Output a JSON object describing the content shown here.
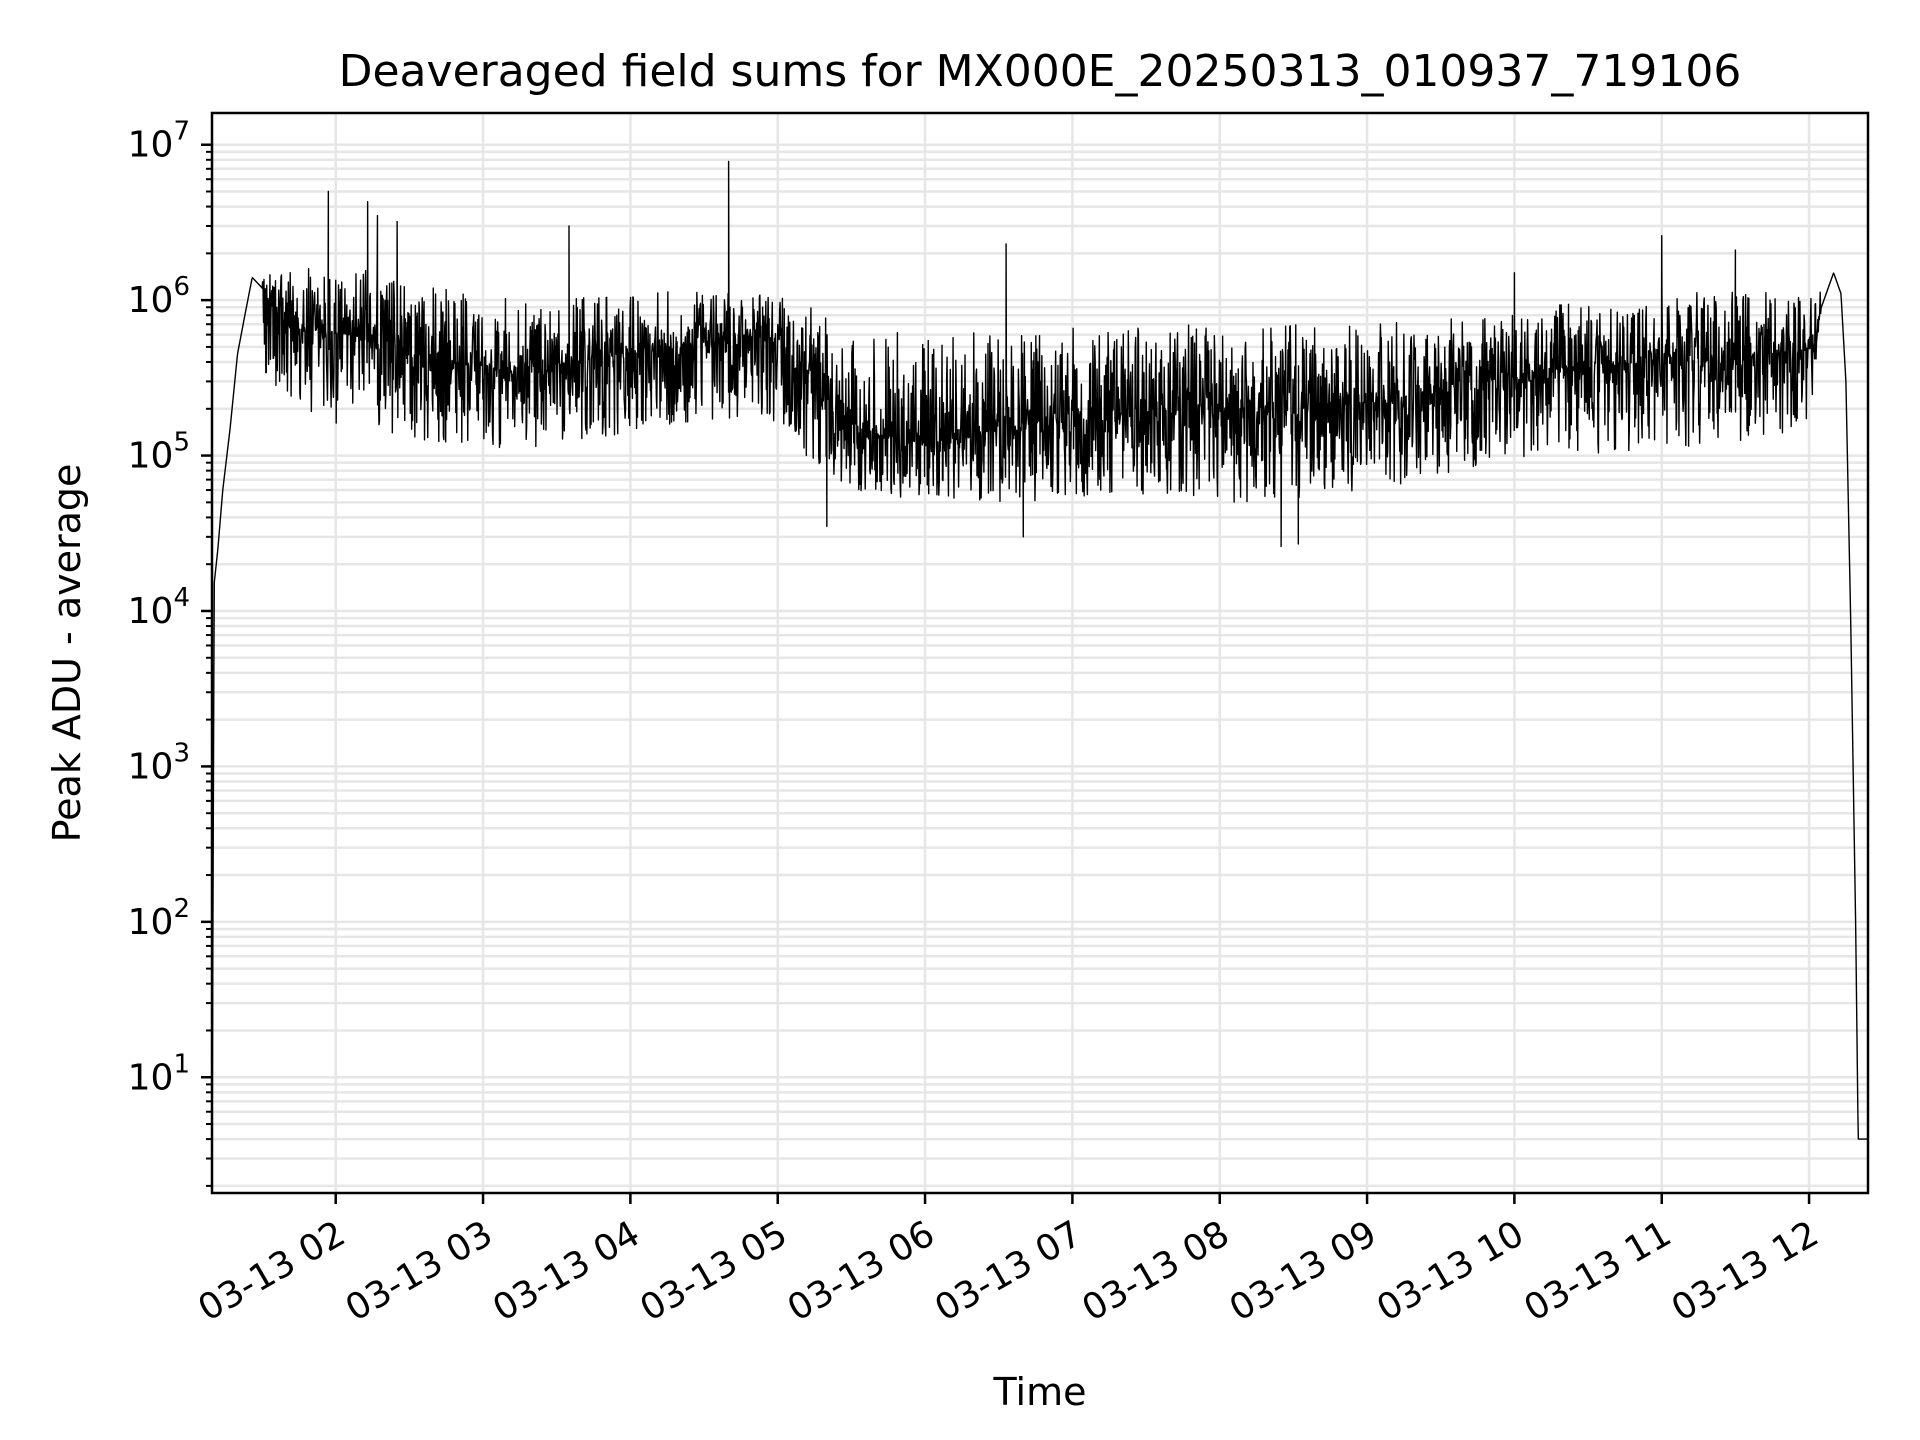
{
  "chart_data": {
    "type": "line",
    "title": "Deaveraged field sums for MX000E_20250313_010937_719106",
    "xlabel": "Time",
    "ylabel": "Peak ADU - average",
    "yscale": "log",
    "ylim": [
      1.8,
      16000000
    ],
    "xlim": [
      "2025-03-13 01:09:37",
      "2025-03-13 12:24:00"
    ],
    "grid": true,
    "line_color": "#000000",
    "grid_color": "#e6e6e6",
    "x_ticks": [
      {
        "label": "03-13 02",
        "time": "2025-03-13 02:00"
      },
      {
        "label": "03-13 03",
        "time": "2025-03-13 03:00"
      },
      {
        "label": "03-13 04",
        "time": "2025-03-13 04:00"
      },
      {
        "label": "03-13 05",
        "time": "2025-03-13 05:00"
      },
      {
        "label": "03-13 06",
        "time": "2025-03-13 06:00"
      },
      {
        "label": "03-13 07",
        "time": "2025-03-13 07:00"
      },
      {
        "label": "03-13 08",
        "time": "2025-03-13 08:00"
      },
      {
        "label": "03-13 09",
        "time": "2025-03-13 09:00"
      },
      {
        "label": "03-13 10",
        "time": "2025-03-13 10:00"
      },
      {
        "label": "03-13 11",
        "time": "2025-03-13 11:00"
      },
      {
        "label": "03-13 12",
        "time": "2025-03-13 12:00"
      }
    ],
    "y_ticks": [
      {
        "base": "10",
        "exp": "1",
        "value": 10
      },
      {
        "base": "10",
        "exp": "2",
        "value": 100
      },
      {
        "base": "10",
        "exp": "3",
        "value": 1000
      },
      {
        "base": "10",
        "exp": "4",
        "value": 10000
      },
      {
        "base": "10",
        "exp": "5",
        "value": 100000
      },
      {
        "base": "10",
        "exp": "6",
        "value": 1000000
      },
      {
        "base": "10",
        "exp": "7",
        "value": 10000000
      }
    ],
    "series": [
      {
        "x": [
          "2025-03-13 01:09:37",
          "2025-03-13 01:10:30",
          "2025-03-13 01:12:00",
          "2025-03-13 01:14:00",
          "2025-03-13 01:17:00",
          "2025-03-13 01:20:00",
          "2025-03-13 01:23:00",
          "2025-03-13 01:26:00",
          "2025-03-13 01:30:00",
          "2025-03-13 01:35:00",
          "2025-03-13 01:40:00",
          "2025-03-13 01:45:00",
          "2025-03-13 01:50:00",
          "2025-03-13 01:55:00",
          "2025-03-13 02:00:00",
          "2025-03-13 02:10:00",
          "2025-03-13 02:20:00",
          "2025-03-13 02:30:00",
          "2025-03-13 02:45:00",
          "2025-03-13 03:00:00",
          "2025-03-13 03:15:00",
          "2025-03-13 03:30:00",
          "2025-03-13 03:45:00",
          "2025-03-13 04:00:00",
          "2025-03-13 04:15:00",
          "2025-03-13 04:30:00",
          "2025-03-13 04:40:00",
          "2025-03-13 04:45:00",
          "2025-03-13 05:00:00",
          "2025-03-13 05:15:00",
          "2025-03-13 05:30:00",
          "2025-03-13 05:45:00",
          "2025-03-13 06:00:00",
          "2025-03-13 06:15:00",
          "2025-03-13 06:30:00",
          "2025-03-13 06:45:00",
          "2025-03-13 07:00:00",
          "2025-03-13 07:30:00",
          "2025-03-13 08:00:00",
          "2025-03-13 08:30:00",
          "2025-03-13 09:00:00",
          "2025-03-13 09:30:00",
          "2025-03-13 10:00:00",
          "2025-03-13 10:30:00",
          "2025-03-13 11:00:00",
          "2025-03-13 11:30:00",
          "2025-03-13 12:00:00",
          "2025-03-13 12:05:00",
          "2025-03-13 12:10:00",
          "2025-03-13 12:13:00",
          "2025-03-13 12:15:00",
          "2025-03-13 12:17:00",
          "2025-03-13 12:19:00",
          "2025-03-13 12:20:00",
          "2025-03-13 12:24:00"
        ],
        "median": [
          2,
          15000,
          25000,
          60000,
          150000,
          450000,
          800000,
          1400000,
          1200000,
          850000,
          700000,
          650000,
          650000,
          620000,
          620000,
          580000,
          500000,
          450000,
          400000,
          380000,
          340000,
          350000,
          420000,
          450000,
          500000,
          520000,
          550000,
          600000,
          560000,
          300000,
          160000,
          130000,
          120000,
          130000,
          150000,
          160000,
          170000,
          190000,
          200000,
          200000,
          220000,
          260000,
          330000,
          380000,
          400000,
          420000,
          480000,
          900000,
          1500000,
          1100000,
          300000,
          8000,
          90,
          4,
          4
        ],
        "low": [
          2,
          15000,
          25000,
          60000,
          150000,
          450000,
          800000,
          1400000,
          350000,
          250000,
          220000,
          200000,
          180000,
          170000,
          160000,
          150000,
          140000,
          130000,
          120000,
          110000,
          110000,
          120000,
          130000,
          140000,
          150000,
          160000,
          160000,
          170000,
          160000,
          80000,
          60000,
          55000,
          50000,
          50000,
          50000,
          50000,
          50000,
          55000,
          50000,
          50000,
          60000,
          70000,
          90000,
          100000,
          110000,
          120000,
          140000,
          900000,
          1500000,
          1100000,
          300000,
          8000,
          40,
          4,
          4
        ],
        "high": [
          2,
          15000,
          25000,
          60000,
          150000,
          450000,
          800000,
          1400000,
          1500000,
          1500000,
          1700000,
          1800000,
          1800000,
          1800000,
          1700000,
          1600000,
          1500000,
          1300000,
          1200000,
          1100000,
          1000000,
          1000000,
          1050000,
          1100000,
          1150000,
          1150000,
          1150000,
          1150000,
          1050000,
          900000,
          700000,
          650000,
          650000,
          650000,
          650000,
          680000,
          680000,
          680000,
          700000,
          700000,
          700000,
          750000,
          850000,
          1000000,
          1100000,
          1150000,
          1200000,
          1600000,
          1600000,
          1200000,
          300000,
          8000,
          100,
          4,
          4
        ]
      }
    ],
    "spikes": [
      {
        "time": "2025-03-13 01:57:00",
        "value": 5000000
      },
      {
        "time": "2025-03-13 02:13:00",
        "value": 4300000
      },
      {
        "time": "2025-03-13 02:17:00",
        "value": 3500000
      },
      {
        "time": "2025-03-13 02:25:00",
        "value": 3200000
      },
      {
        "time": "2025-03-13 03:35:00",
        "value": 3000000
      },
      {
        "time": "2025-03-13 04:40:00",
        "value": 7800000
      },
      {
        "time": "2025-03-13 06:33:00",
        "value": 2300000
      },
      {
        "time": "2025-03-13 10:00:00",
        "value": 1500000
      },
      {
        "time": "2025-03-13 11:00:00",
        "value": 2600000
      },
      {
        "time": "2025-03-13 11:30:00",
        "value": 2100000
      }
    ],
    "dips": [
      {
        "time": "2025-03-13 05:20:00",
        "value": 35000
      },
      {
        "time": "2025-03-13 06:40:00",
        "value": 30000
      },
      {
        "time": "2025-03-13 08:25:00",
        "value": 26000
      },
      {
        "time": "2025-03-13 08:32:00",
        "value": 27000
      }
    ]
  }
}
